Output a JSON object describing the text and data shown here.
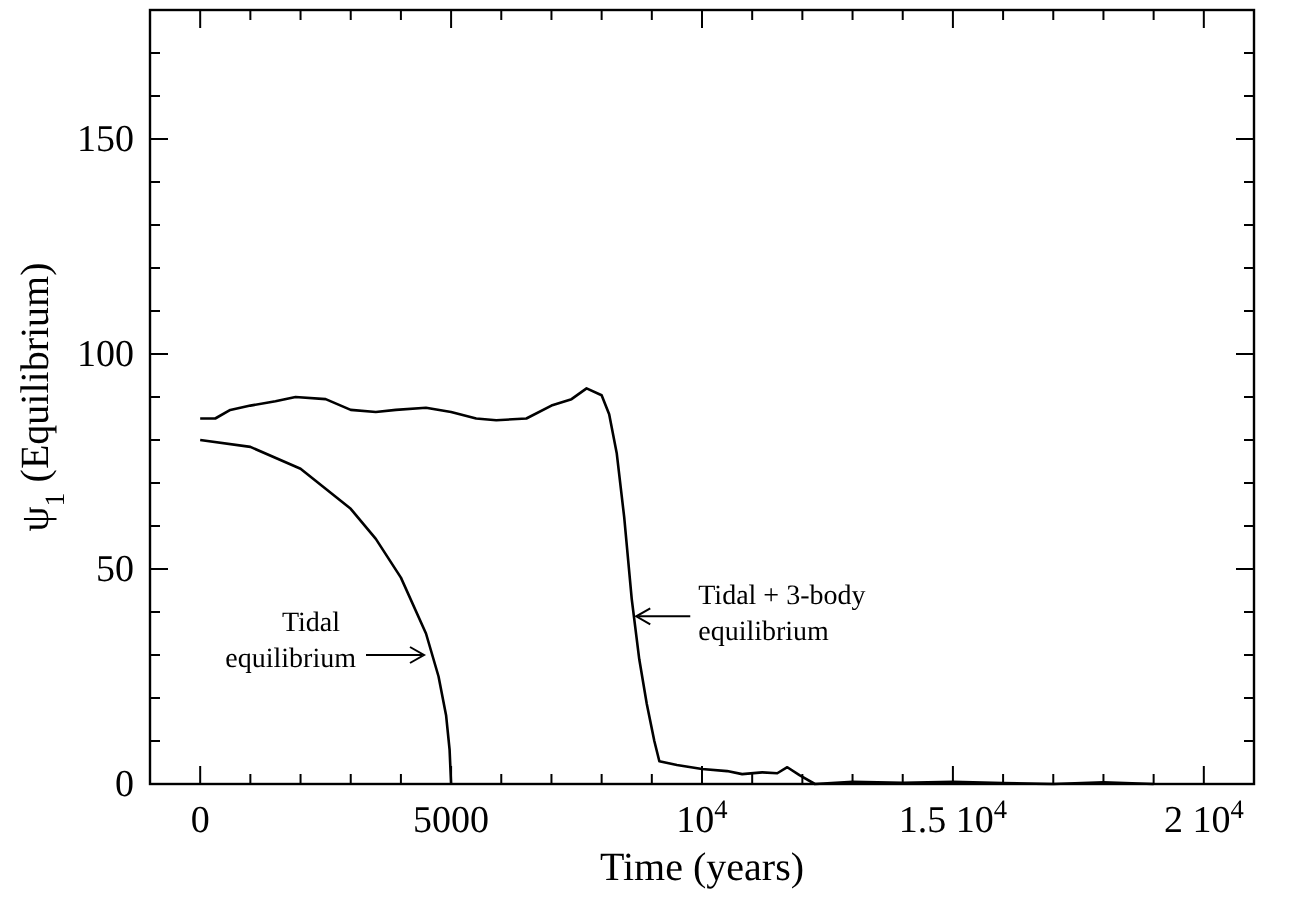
{
  "chart_data": {
    "type": "line",
    "xlabel": "Time (years)",
    "ylabel": "ψ$_{1}$ (Equilibrium)",
    "xlim": [
      -1000,
      21000
    ],
    "ylim": [
      0,
      180
    ],
    "xticks": [
      0,
      {
        "value": 1000,
        "label": null
      },
      {
        "value": 2000,
        "label": null
      },
      {
        "value": 3000,
        "label": null
      },
      {
        "value": 4000,
        "label": null
      },
      5000,
      {
        "value": 6000,
        "label": null
      },
      {
        "value": 7000,
        "label": null
      },
      {
        "value": 8000,
        "label": null
      },
      {
        "value": 9000,
        "label": null
      },
      {
        "value": 10000,
        "label": "10$^{4}$"
      },
      {
        "value": 11000,
        "label": null
      },
      {
        "value": 12000,
        "label": null
      },
      {
        "value": 13000,
        "label": null
      },
      {
        "value": 14000,
        "label": null
      },
      {
        "value": 15000,
        "label": "1.5 10$^{4}$"
      },
      {
        "value": 16000,
        "label": null
      },
      {
        "value": 17000,
        "label": null
      },
      {
        "value": 18000,
        "label": null
      },
      {
        "value": 19000,
        "label": null
      },
      {
        "value": 20000,
        "label": "2 10$^{4}$"
      }
    ],
    "yticks": [
      0,
      {
        "value": 10,
        "label": null
      },
      {
        "value": 20,
        "label": null
      },
      {
        "value": 30,
        "label": null
      },
      {
        "value": 40,
        "label": null
      },
      50,
      {
        "value": 60,
        "label": null
      },
      {
        "value": 70,
        "label": null
      },
      {
        "value": 80,
        "label": null
      },
      {
        "value": 90,
        "label": null
      },
      100,
      {
        "value": 110,
        "label": null
      },
      {
        "value": 120,
        "label": null
      },
      {
        "value": 130,
        "label": null
      },
      {
        "value": 140,
        "label": null
      },
      150,
      {
        "value": 160,
        "label": null
      },
      {
        "value": 170,
        "label": null
      }
    ],
    "grid": false,
    "marker": "none",
    "line_style": "solid",
    "series": [
      {
        "color": "#000000",
        "x": [
          0,
          1000,
          2000,
          3000,
          3500,
          4000,
          4500,
          4750,
          4900,
          4970,
          5000
        ],
        "values": [
          80,
          78.4,
          73.3,
          64,
          57,
          48,
          35,
          25,
          16,
          8,
          0
        ]
      },
      {
        "color": "#000000",
        "x": [
          0,
          300,
          600,
          1000,
          1500,
          1900,
          2500,
          3000,
          3500,
          3900,
          4500,
          5000,
          5500,
          5900,
          6500,
          7000,
          7400,
          7700,
          8000,
          8150,
          8300,
          8450,
          8600,
          8750,
          8900,
          9050,
          9150,
          9500,
          10000,
          10500,
          10800,
          11200,
          11500,
          11700,
          11950,
          12250,
          13000,
          14000,
          15000,
          16000,
          17000,
          18000,
          19000
        ],
        "values": [
          85,
          85,
          87,
          88,
          89,
          90,
          89.5,
          87,
          86.5,
          87,
          87.5,
          86.5,
          85,
          84.6,
          85,
          88,
          89.5,
          92,
          90.4,
          86,
          77,
          62,
          43,
          29,
          18.6,
          10,
          5.3,
          4.4,
          3.5,
          3,
          2.3,
          2.7,
          2.5,
          3.9,
          2,
          0,
          0.5,
          0.3,
          0.5,
          0.2,
          0,
          0.4,
          0
        ]
      }
    ],
    "annotations": [
      {
        "text": "Tidal\nequilibrium",
        "x": 4500,
        "y": 30
      },
      {
        "text": "Tidal + 3-body\nequilibrium",
        "x": 8650,
        "y": 39
      }
    ]
  }
}
